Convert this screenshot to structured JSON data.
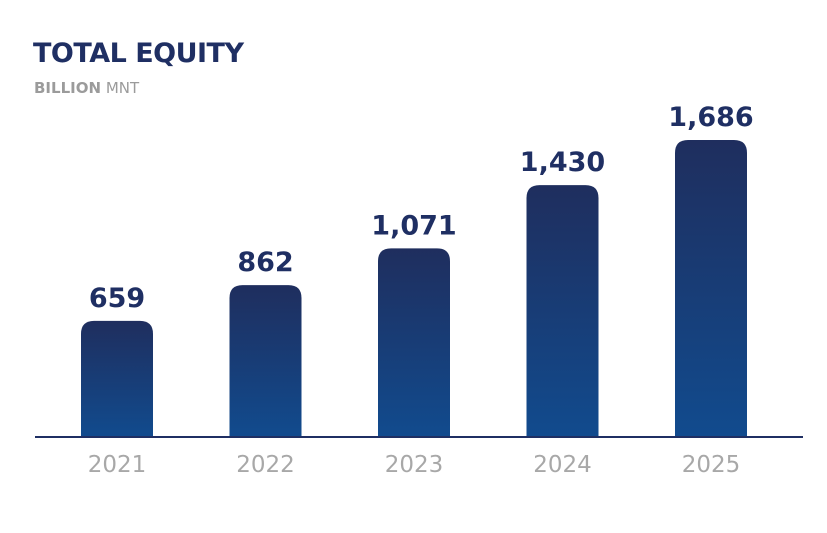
{
  "title": "TOTAL EQUITY",
  "subtitle_strong": "BILLION",
  "subtitle_rest": "MNT",
  "colors": {
    "title": "#1f2f63",
    "subtitle": "#9b9b9b",
    "bar_top": "#1f2e5e",
    "bar_bottom": "#114b8e",
    "value_label": "#1f2f63",
    "tick_label": "#a8a8a8",
    "axis": "#1f2f63"
  },
  "chart_data": {
    "type": "bar",
    "title": "TOTAL EQUITY",
    "subtitle": "BILLION MNT",
    "categories": [
      "2021",
      "2022",
      "2023",
      "2024",
      "2025"
    ],
    "values": [
      659,
      862,
      1071,
      1430,
      1686
    ],
    "value_labels": [
      "659",
      "862",
      "1,071",
      "1,430",
      "1,686"
    ],
    "xlabel": "",
    "ylabel": "",
    "ylim": [
      0,
      1686
    ],
    "grid": false,
    "legend": "none"
  }
}
